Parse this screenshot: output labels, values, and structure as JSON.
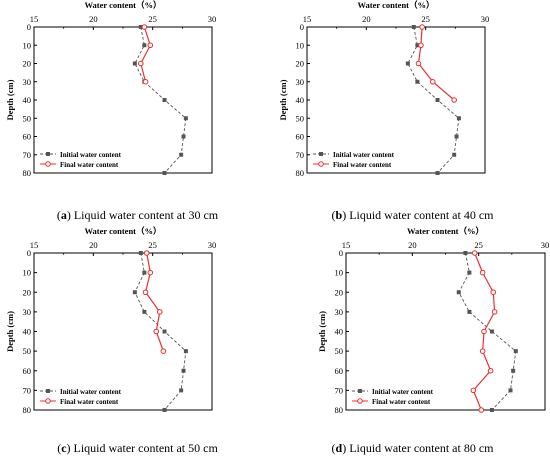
{
  "colors": {
    "initial": "#555555",
    "final": "#e8312f",
    "axis": "#000000"
  },
  "chart_data": [
    {
      "type": "line",
      "caption_letter": "a",
      "caption_text": "Liquid water content at 30 cm",
      "xlabel": "Water content（%）",
      "ylabel": "Depth (cm)",
      "xlim": [
        15,
        30
      ],
      "ylim": [
        80,
        0
      ],
      "xticks": [
        "15",
        "20",
        "25",
        "30"
      ],
      "yticks": [
        "0",
        "10",
        "20",
        "30",
        "40",
        "50",
        "60",
        "70",
        "80"
      ],
      "legend": "bottom-left",
      "series": [
        {
          "name": "Initial water content",
          "x": [
            24.0,
            24.3,
            23.5,
            24.3,
            26.0,
            27.8,
            27.6,
            27.4,
            26.0
          ],
          "y": [
            0,
            10,
            20,
            30,
            40,
            50,
            60,
            70,
            80
          ]
        },
        {
          "name": "Final water content",
          "x": [
            24.3,
            24.8,
            24.0,
            24.4
          ],
          "y": [
            0,
            10,
            20,
            30
          ]
        }
      ]
    },
    {
      "type": "line",
      "caption_letter": "b",
      "caption_text": "Liquid water content at 40 cm",
      "xlabel": "Water content（%）",
      "ylabel": "Depth (cm)",
      "xlim": [
        15,
        30
      ],
      "ylim": [
        80,
        0
      ],
      "xticks": [
        "15",
        "20",
        "25",
        "30"
      ],
      "yticks": [
        "0",
        "10",
        "20",
        "30",
        "40",
        "50",
        "60",
        "70",
        "80"
      ],
      "legend": "bottom-left",
      "series": [
        {
          "name": "Initial water content",
          "x": [
            24.0,
            24.3,
            23.5,
            24.3,
            26.0,
            27.8,
            27.6,
            27.4,
            26.0
          ],
          "y": [
            0,
            10,
            20,
            30,
            40,
            50,
            60,
            70,
            80
          ]
        },
        {
          "name": "Final water content",
          "x": [
            24.7,
            24.6,
            24.4,
            25.6,
            27.4
          ],
          "y": [
            0,
            10,
            20,
            30,
            40
          ]
        }
      ]
    },
    {
      "type": "line",
      "caption_letter": "c",
      "caption_text": "Liquid water content at 50 cm",
      "xlabel": "Water content（%）",
      "ylabel": "Depth (cm)",
      "xlim": [
        15,
        30
      ],
      "ylim": [
        80,
        0
      ],
      "xticks": [
        "15",
        "20",
        "25",
        "30"
      ],
      "yticks": [
        "0",
        "10",
        "20",
        "30",
        "40",
        "50",
        "60",
        "70",
        "80"
      ],
      "legend": "bottom-left",
      "series": [
        {
          "name": "Initial water content",
          "x": [
            24.0,
            24.3,
            23.5,
            24.3,
            26.0,
            27.8,
            27.6,
            27.4,
            26.0
          ],
          "y": [
            0,
            10,
            20,
            30,
            40,
            50,
            60,
            70,
            80
          ]
        },
        {
          "name": "Final water content",
          "x": [
            24.5,
            24.8,
            24.4,
            25.6,
            25.3,
            25.9
          ],
          "y": [
            0,
            10,
            20,
            30,
            40,
            50
          ]
        }
      ]
    },
    {
      "type": "line",
      "caption_letter": "d",
      "caption_text": "Liquid water content at 80 cm",
      "xlabel": "Water content（%）",
      "ylabel": "Depth (cm)",
      "xlim": [
        15,
        30
      ],
      "ylim": [
        80,
        0
      ],
      "xticks": [
        "15",
        "20",
        "25",
        "30"
      ],
      "yticks": [
        "0",
        "10",
        "20",
        "30",
        "40",
        "50",
        "60",
        "70",
        "80"
      ],
      "legend": "bottom-left",
      "series": [
        {
          "name": "Initial water content",
          "x": [
            24.0,
            24.3,
            23.5,
            24.3,
            26.0,
            27.8,
            27.6,
            27.4,
            26.0
          ],
          "y": [
            0,
            10,
            20,
            30,
            40,
            50,
            60,
            70,
            80
          ]
        },
        {
          "name": "Final water content",
          "x": [
            24.7,
            25.3,
            26.1,
            26.2,
            25.4,
            25.3,
            25.9,
            24.6,
            25.2
          ],
          "y": [
            0,
            10,
            20,
            30,
            40,
            50,
            60,
            70,
            80
          ]
        }
      ]
    }
  ]
}
